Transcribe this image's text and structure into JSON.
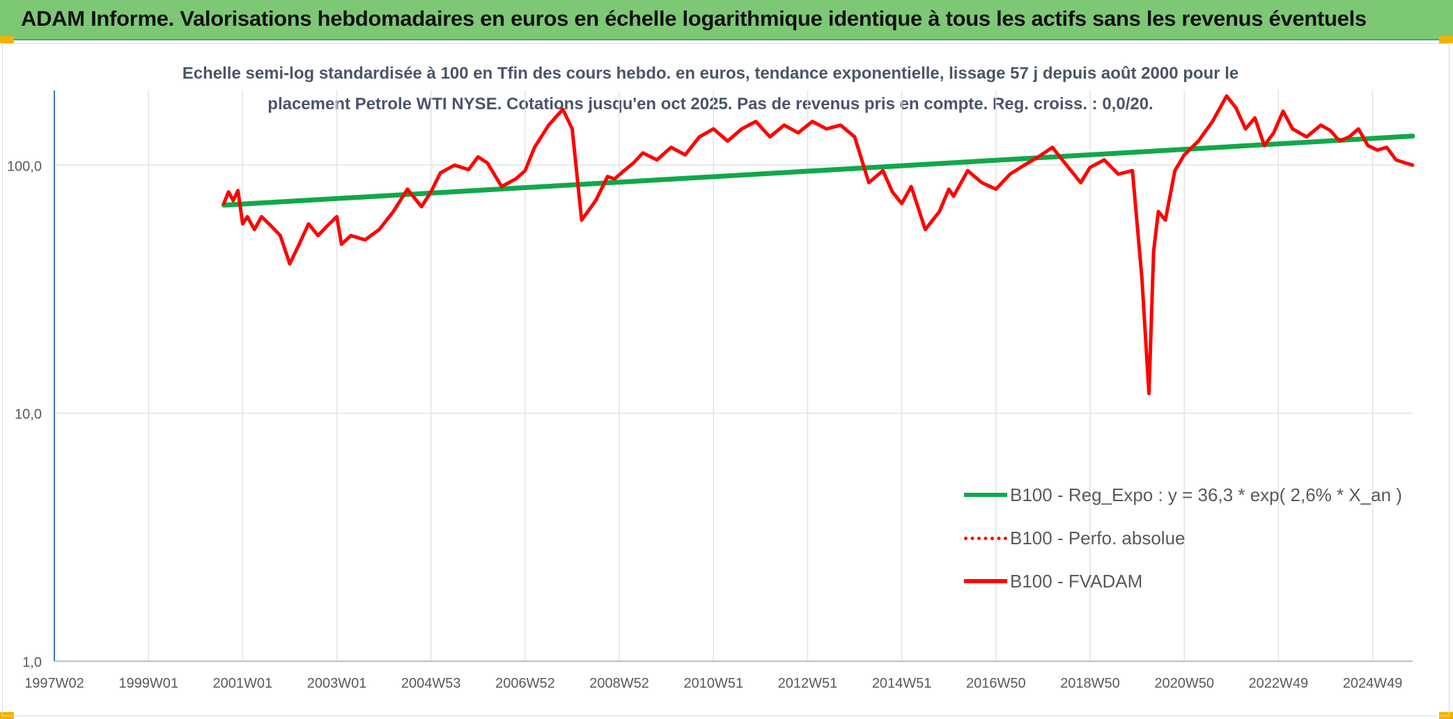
{
  "header": {
    "title": "ADAM Informe. Valorisations hebdomadaires en euros en échelle logarithmique identique à tous les actifs sans les revenus éventuels"
  },
  "colors": {
    "banner": "#7dc875",
    "trend": "#11a84a",
    "fvadam": "#ff0000",
    "accent": "#f2b200"
  },
  "chart_data": {
    "type": "line",
    "title_line1": "Echelle semi-log standardisée à 100 en Tfin des cours hebdo. en euros, tendance exponentielle, lissage 57 j depuis août 2000 pour le",
    "title_line2": "placement Petrole WTI NYSE. Cotations jusqu'en oct 2025. Pas de revenus pris en compte. Reg. croiss. : 0,0/20.",
    "x_tick_labels": [
      "1997W02",
      "1999W01",
      "2001W01",
      "2003W01",
      "2004W53",
      "2006W52",
      "2008W52",
      "2010W51",
      "2012W51",
      "2014W51",
      "2016W50",
      "2018W50",
      "2020W50",
      "2022W49",
      "2024W49"
    ],
    "x_ticks": [
      1997.0,
      1999.0,
      2001.0,
      2003.0,
      2005.0,
      2007.0,
      2009.0,
      2011.0,
      2013.0,
      2015.0,
      2017.0,
      2019.0,
      2021.0,
      2023.0,
      2025.0
    ],
    "x_range": [
      1997.0,
      2025.85
    ],
    "y_scale": "log",
    "ylim": [
      1,
      200
    ],
    "y_ticks": [
      1,
      10,
      100
    ],
    "y_tick_labels": [
      "1,0",
      "10,0",
      "100,0"
    ],
    "grid": "vertical",
    "legend_position": "bottom-right",
    "series": [
      {
        "name": "B100 - Reg_Expo : y = 36,3 * exp( 2,6% *  X_an )",
        "style": "solid",
        "color": "#11a84a",
        "x": [
          2000.6,
          2025.85
        ],
        "y": [
          69,
          131
        ]
      },
      {
        "name": "B100 - Perfo. absolue",
        "style": "dotted",
        "color": "#ff0000",
        "x": [],
        "y": []
      },
      {
        "name": "B100 - FVADAM",
        "style": "solid",
        "color": "#ff0000",
        "x": [
          2000.6,
          2000.7,
          2000.8,
          2000.9,
          2001.0,
          2001.1,
          2001.25,
          2001.4,
          2001.6,
          2001.8,
          2002.0,
          2002.2,
          2002.4,
          2002.6,
          2002.8,
          2003.0,
          2003.1,
          2003.3,
          2003.6,
          2003.9,
          2004.2,
          2004.5,
          2004.8,
          2005.0,
          2005.2,
          2005.5,
          2005.8,
          2006.0,
          2006.2,
          2006.5,
          2006.8,
          2007.0,
          2007.2,
          2007.5,
          2007.8,
          2008.0,
          2008.2,
          2008.5,
          2008.75,
          2008.9,
          2009.1,
          2009.3,
          2009.5,
          2009.8,
          2010.1,
          2010.4,
          2010.7,
          2011.0,
          2011.3,
          2011.6,
          2011.9,
          2012.2,
          2012.5,
          2012.8,
          2013.1,
          2013.4,
          2013.7,
          2014.0,
          2014.3,
          2014.6,
          2014.8,
          2015.0,
          2015.2,
          2015.5,
          2015.8,
          2016.0,
          2016.1,
          2016.4,
          2016.7,
          2017.0,
          2017.3,
          2017.6,
          2017.9,
          2018.2,
          2018.5,
          2018.8,
          2019.0,
          2019.3,
          2019.6,
          2019.9,
          2020.1,
          2020.25,
          2020.35,
          2020.45,
          2020.6,
          2020.8,
          2021.0,
          2021.3,
          2021.6,
          2021.9,
          2022.1,
          2022.3,
          2022.5,
          2022.7,
          2022.9,
          2023.1,
          2023.3,
          2023.6,
          2023.9,
          2024.1,
          2024.3,
          2024.5,
          2024.7,
          2024.9,
          2025.1,
          2025.3,
          2025.5,
          2025.7,
          2025.85
        ],
        "y": [
          70,
          78,
          72,
          79,
          58,
          62,
          55,
          62,
          57,
          52,
          40,
          48,
          58,
          52,
          57,
          62,
          48,
          52,
          50,
          55,
          65,
          80,
          68,
          78,
          93,
          100,
          96,
          108,
          102,
          82,
          88,
          95,
          118,
          145,
          168,
          140,
          60,
          72,
          90,
          88,
          95,
          102,
          112,
          105,
          118,
          110,
          130,
          140,
          125,
          140,
          150,
          130,
          145,
          135,
          150,
          140,
          145,
          130,
          85,
          95,
          78,
          70,
          82,
          55,
          65,
          80,
          75,
          95,
          85,
          80,
          92,
          100,
          108,
          118,
          100,
          85,
          98,
          105,
          92,
          95,
          35,
          12,
          45,
          65,
          60,
          95,
          110,
          125,
          150,
          190,
          170,
          140,
          155,
          120,
          135,
          165,
          140,
          130,
          145,
          138,
          125,
          130,
          140,
          120,
          115,
          118,
          105,
          102,
          100
        ]
      }
    ]
  }
}
